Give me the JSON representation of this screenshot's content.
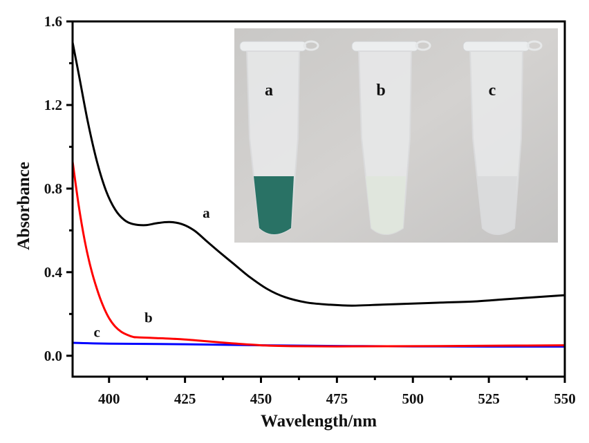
{
  "chart_data": {
    "type": "line",
    "title": "",
    "xlabel": "Wavelength/nm",
    "ylabel": "Absorbance",
    "xlim": [
      388,
      550
    ],
    "ylim": [
      -0.1,
      1.6
    ],
    "x_ticks": [
      400,
      425,
      450,
      475,
      500,
      525,
      550
    ],
    "x_tick_labels": [
      "400",
      "425",
      "450",
      "475",
      "500",
      "525",
      "550"
    ],
    "y_ticks": [
      0.0,
      0.4,
      0.8,
      1.2,
      1.6
    ],
    "y_tick_labels": [
      "0.0",
      "0.4",
      "0.8",
      "1.2",
      "1.6"
    ],
    "grid": false,
    "series": [
      {
        "name": "a",
        "color": "#000000",
        "x": [
          388,
          390,
          393,
          396,
          399,
          402,
          405,
          408,
          412,
          416,
          420,
          424,
          428,
          432,
          436,
          441,
          446,
          452,
          458,
          465,
          472,
          480,
          490,
          500,
          510,
          520,
          530,
          540,
          550
        ],
        "y": [
          1.5,
          1.35,
          1.12,
          0.93,
          0.79,
          0.7,
          0.65,
          0.63,
          0.625,
          0.635,
          0.64,
          0.63,
          0.6,
          0.55,
          0.5,
          0.44,
          0.38,
          0.32,
          0.28,
          0.255,
          0.245,
          0.24,
          0.245,
          0.25,
          0.255,
          0.26,
          0.27,
          0.28,
          0.29
        ]
      },
      {
        "name": "b",
        "color": "#ff0000",
        "x": [
          388,
          390,
          392,
          394,
          396,
          398,
          400,
          402,
          404,
          406,
          408,
          410,
          415,
          420,
          425,
          430,
          440,
          450,
          460,
          475,
          500,
          525,
          550
        ],
        "y": [
          0.93,
          0.72,
          0.55,
          0.42,
          0.32,
          0.24,
          0.18,
          0.14,
          0.115,
          0.1,
          0.09,
          0.088,
          0.085,
          0.082,
          0.078,
          0.072,
          0.06,
          0.05,
          0.046,
          0.045,
          0.046,
          0.048,
          0.05
        ]
      },
      {
        "name": "c",
        "color": "#0000ff",
        "x": [
          388,
          400,
          425,
          450,
          475,
          500,
          525,
          550
        ],
        "y": [
          0.062,
          0.058,
          0.055,
          0.05,
          0.047,
          0.045,
          0.044,
          0.044
        ]
      }
    ],
    "annotations": [
      {
        "text": "a",
        "x": 432,
        "y": 0.66
      },
      {
        "text": "b",
        "x": 413,
        "y": 0.16
      },
      {
        "text": "c",
        "x": 396,
        "y": 0.09
      }
    ],
    "inset": {
      "type": "photo",
      "description": "three sample tubes",
      "labels": [
        "a",
        "b",
        "c"
      ],
      "liquid_colors": [
        "#1f6b5e",
        "#dfe6dc",
        "#d8d9da"
      ]
    }
  }
}
